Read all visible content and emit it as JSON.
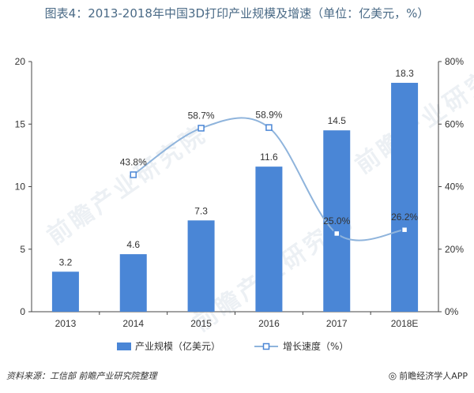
{
  "title": "图表4：2013-2018年中国3D打印产业规模及增速（单位：亿美元，%）",
  "source_text": "资料来源：工信部 前瞻产业研究院整理",
  "brand_text": "前瞻经济学人APP",
  "watermark_text": "前瞻产业研究院",
  "chart_data": {
    "type": "bar",
    "categories": [
      "2013",
      "2014",
      "2015",
      "2016",
      "2017",
      "2018E"
    ],
    "series": [
      {
        "name": "产业规模（亿美元）",
        "type": "bar",
        "axis": "left",
        "values": [
          3.2,
          4.6,
          7.3,
          11.6,
          14.5,
          18.3
        ],
        "labels": [
          "3.2",
          "4.6",
          "7.3",
          "11.6",
          "14.5",
          "18.3"
        ]
      },
      {
        "name": "增长速度（%）",
        "type": "line",
        "axis": "right",
        "values": [
          null,
          43.8,
          58.7,
          58.9,
          25.0,
          26.2
        ],
        "labels": [
          "",
          "43.8%",
          "58.7%",
          "58.9%",
          "25.0%",
          "26.2%"
        ]
      }
    ],
    "ylim_left": [
      0,
      20
    ],
    "yticks_left": [
      "0",
      "5",
      "10",
      "15",
      "20"
    ],
    "ylim_right": [
      0,
      80
    ],
    "yticks_right": [
      "0%",
      "20%",
      "40%",
      "60%",
      "80%"
    ],
    "colors": {
      "bar": "#4a86d6",
      "line": "#8fb4dc",
      "marker": "#4a86d6",
      "axis": "#444444"
    },
    "legend_position": "bottom"
  }
}
